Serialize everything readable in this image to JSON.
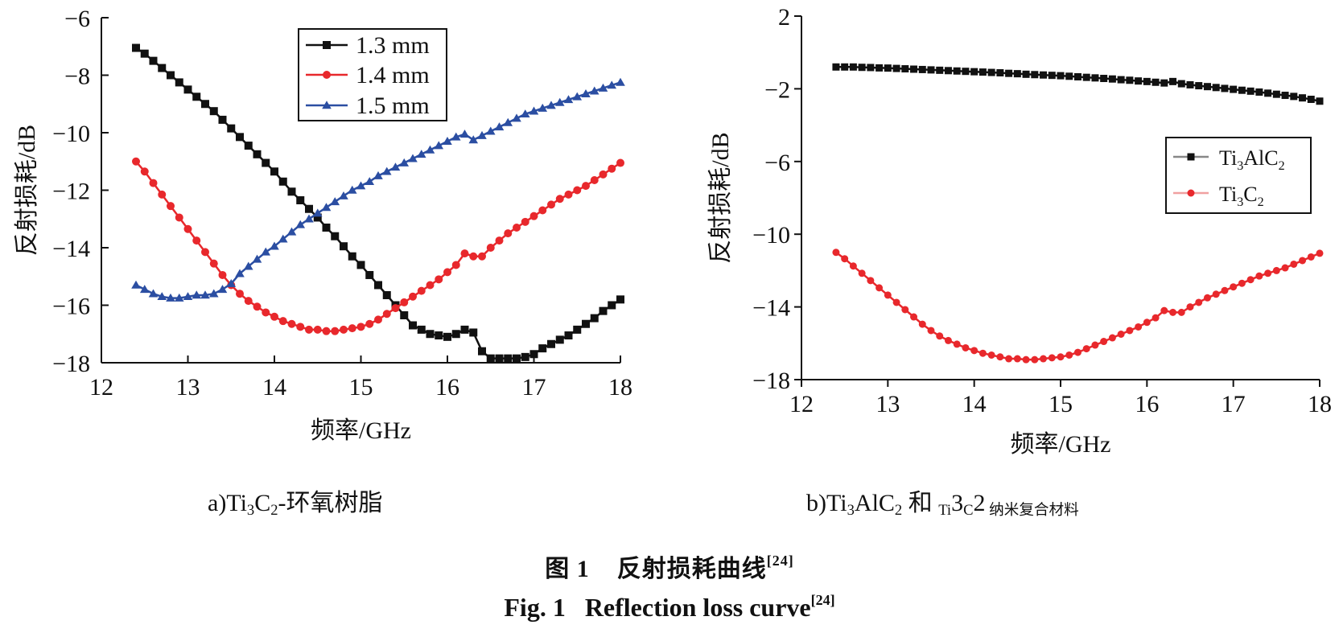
{
  "figure": {
    "caption_zh_prefix": "图 1",
    "caption_zh": "反射损耗曲线",
    "caption_ref": "[24]",
    "caption_en_prefix": "Fig. 1",
    "caption_en": "Reflection loss curve"
  },
  "chart_data": [
    {
      "type": "line",
      "panel_label": "a)",
      "caption_parts": [
        "Ti",
        "3",
        "C",
        "2",
        "-环氧树脂"
      ],
      "xlabel": "频率/GHz",
      "ylabel": "反射损耗/dB",
      "xlim": [
        12,
        18
      ],
      "ylim": [
        -18,
        -6
      ],
      "xticks": [
        12,
        13,
        14,
        15,
        16,
        17,
        18
      ],
      "yticks": [
        -6,
        -8,
        -10,
        -12,
        -14,
        -16,
        -18
      ],
      "grid": false,
      "legend_position": "top-center",
      "series": [
        {
          "name": "1.3 mm",
          "color": "#111111",
          "marker": "square",
          "x": [
            12.4,
            12.5,
            12.6,
            12.7,
            12.8,
            12.9,
            13.0,
            13.1,
            13.2,
            13.3,
            13.4,
            13.5,
            13.6,
            13.7,
            13.8,
            13.9,
            14.0,
            14.1,
            14.2,
            14.3,
            14.4,
            14.5,
            14.6,
            14.7,
            14.8,
            14.9,
            15.0,
            15.1,
            15.2,
            15.3,
            15.4,
            15.5,
            15.6,
            15.7,
            15.8,
            15.9,
            16.0,
            16.1,
            16.2,
            16.3,
            16.4,
            16.5,
            16.6,
            16.7,
            16.8,
            16.9,
            17.0,
            17.1,
            17.2,
            17.3,
            17.4,
            17.5,
            17.6,
            17.7,
            17.8,
            17.9,
            18.0
          ],
          "y": [
            -7.05,
            -7.25,
            -7.5,
            -7.75,
            -8.0,
            -8.25,
            -8.5,
            -8.75,
            -9.0,
            -9.25,
            -9.55,
            -9.85,
            -10.15,
            -10.45,
            -10.75,
            -11.05,
            -11.35,
            -11.7,
            -12.05,
            -12.35,
            -12.65,
            -12.95,
            -13.3,
            -13.6,
            -13.95,
            -14.3,
            -14.6,
            -14.95,
            -15.3,
            -15.65,
            -16.0,
            -16.35,
            -16.7,
            -16.85,
            -17.0,
            -17.05,
            -17.1,
            -17.0,
            -16.85,
            -16.95,
            -17.6,
            -17.85,
            -17.85,
            -17.85,
            -17.85,
            -17.8,
            -17.7,
            -17.5,
            -17.35,
            -17.2,
            -17.05,
            -16.85,
            -16.65,
            -16.45,
            -16.2,
            -16.0,
            -15.8
          ]
        },
        {
          "name": "1.4 mm",
          "color": "#e8282c",
          "marker": "circle",
          "x": [
            12.4,
            12.5,
            12.6,
            12.7,
            12.8,
            12.9,
            13.0,
            13.1,
            13.2,
            13.3,
            13.4,
            13.5,
            13.6,
            13.7,
            13.8,
            13.9,
            14.0,
            14.1,
            14.2,
            14.3,
            14.4,
            14.5,
            14.6,
            14.7,
            14.8,
            14.9,
            15.0,
            15.1,
            15.2,
            15.3,
            15.4,
            15.5,
            15.6,
            15.7,
            15.8,
            15.9,
            16.0,
            16.1,
            16.2,
            16.3,
            16.4,
            16.5,
            16.6,
            16.7,
            16.8,
            16.9,
            17.0,
            17.1,
            17.2,
            17.3,
            17.4,
            17.5,
            17.6,
            17.7,
            17.8,
            17.9,
            18.0
          ],
          "y": [
            -11.0,
            -11.35,
            -11.75,
            -12.15,
            -12.55,
            -12.95,
            -13.35,
            -13.75,
            -14.15,
            -14.55,
            -14.95,
            -15.3,
            -15.6,
            -15.85,
            -16.05,
            -16.25,
            -16.4,
            -16.55,
            -16.65,
            -16.75,
            -16.85,
            -16.85,
            -16.9,
            -16.9,
            -16.85,
            -16.8,
            -16.75,
            -16.65,
            -16.5,
            -16.3,
            -16.1,
            -15.9,
            -15.7,
            -15.5,
            -15.3,
            -15.1,
            -14.85,
            -14.6,
            -14.2,
            -14.3,
            -14.3,
            -14.0,
            -13.75,
            -13.5,
            -13.3,
            -13.1,
            -12.9,
            -12.7,
            -12.5,
            -12.3,
            -12.15,
            -12.0,
            -11.85,
            -11.65,
            -11.45,
            -11.25,
            -11.05
          ]
        },
        {
          "name": "1.5 mm",
          "color": "#2b4ea2",
          "marker": "triangle",
          "x": [
            12.4,
            12.5,
            12.6,
            12.7,
            12.8,
            12.9,
            13.0,
            13.1,
            13.2,
            13.3,
            13.4,
            13.5,
            13.6,
            13.7,
            13.8,
            13.9,
            14.0,
            14.1,
            14.2,
            14.3,
            14.4,
            14.5,
            14.6,
            14.7,
            14.8,
            14.9,
            15.0,
            15.1,
            15.2,
            15.3,
            15.4,
            15.5,
            15.6,
            15.7,
            15.8,
            15.9,
            16.0,
            16.1,
            16.2,
            16.3,
            16.4,
            16.5,
            16.6,
            16.7,
            16.8,
            16.9,
            17.0,
            17.1,
            17.2,
            17.3,
            17.4,
            17.5,
            17.6,
            17.7,
            17.8,
            17.9,
            18.0
          ],
          "y": [
            -15.3,
            -15.45,
            -15.6,
            -15.7,
            -15.75,
            -15.75,
            -15.7,
            -15.65,
            -15.65,
            -15.6,
            -15.45,
            -15.25,
            -14.9,
            -14.65,
            -14.4,
            -14.15,
            -13.95,
            -13.7,
            -13.45,
            -13.2,
            -13.0,
            -12.8,
            -12.6,
            -12.4,
            -12.2,
            -12.0,
            -11.85,
            -11.7,
            -11.5,
            -11.35,
            -11.2,
            -11.05,
            -10.9,
            -10.75,
            -10.6,
            -10.45,
            -10.3,
            -10.15,
            -10.05,
            -10.25,
            -10.1,
            -9.95,
            -9.8,
            -9.65,
            -9.5,
            -9.35,
            -9.25,
            -9.15,
            -9.05,
            -8.95,
            -8.85,
            -8.75,
            -8.65,
            -8.55,
            -8.45,
            -8.35,
            -8.25
          ]
        }
      ]
    },
    {
      "type": "line",
      "panel_label": "b)",
      "caption_parts": [
        "Ti",
        "3",
        "AlC",
        "2",
        " 和 ",
        "Ti",
        "3",
        "C",
        "2",
        " 纳米复合材料"
      ],
      "xlabel": "频率/GHz",
      "ylabel": "反射损耗/dB",
      "xlim": [
        12,
        18
      ],
      "ylim": [
        -18,
        2
      ],
      "xticks": [
        12,
        13,
        14,
        15,
        16,
        17,
        18
      ],
      "yticks": [
        2,
        -2,
        -6,
        -10,
        -14,
        -18
      ],
      "grid": false,
      "legend_position": "right",
      "series": [
        {
          "name": "Ti3AlC2",
          "name_parts": [
            "Ti",
            "3",
            "AlC",
            "2"
          ],
          "color": "#111111",
          "marker": "square",
          "x": [
            12.4,
            12.5,
            12.6,
            12.7,
            12.8,
            12.9,
            13.0,
            13.1,
            13.2,
            13.3,
            13.4,
            13.5,
            13.6,
            13.7,
            13.8,
            13.9,
            14.0,
            14.1,
            14.2,
            14.3,
            14.4,
            14.5,
            14.6,
            14.7,
            14.8,
            14.9,
            15.0,
            15.1,
            15.2,
            15.3,
            15.4,
            15.5,
            15.6,
            15.7,
            15.8,
            15.9,
            16.0,
            16.1,
            16.2,
            16.3,
            16.4,
            16.5,
            16.6,
            16.7,
            16.8,
            16.9,
            17.0,
            17.1,
            17.2,
            17.3,
            17.4,
            17.5,
            17.6,
            17.7,
            17.8,
            17.9,
            18.0
          ],
          "y": [
            -0.8,
            -0.8,
            -0.8,
            -0.82,
            -0.83,
            -0.85,
            -0.86,
            -0.88,
            -0.9,
            -0.92,
            -0.94,
            -0.96,
            -0.98,
            -1.0,
            -1.02,
            -1.04,
            -1.06,
            -1.08,
            -1.1,
            -1.12,
            -1.15,
            -1.17,
            -1.2,
            -1.22,
            -1.24,
            -1.26,
            -1.28,
            -1.31,
            -1.34,
            -1.37,
            -1.4,
            -1.43,
            -1.46,
            -1.5,
            -1.53,
            -1.57,
            -1.6,
            -1.64,
            -1.68,
            -1.6,
            -1.72,
            -1.78,
            -1.83,
            -1.88,
            -1.93,
            -1.98,
            -2.03,
            -2.08,
            -2.13,
            -2.18,
            -2.24,
            -2.3,
            -2.36,
            -2.42,
            -2.5,
            -2.58,
            -2.68
          ]
        },
        {
          "name": "Ti3C2",
          "name_parts": [
            "Ti",
            "3",
            "C",
            "2"
          ],
          "color": "#e8282c",
          "marker": "circle",
          "x": [
            12.4,
            12.5,
            12.6,
            12.7,
            12.8,
            12.9,
            13.0,
            13.1,
            13.2,
            13.3,
            13.4,
            13.5,
            13.6,
            13.7,
            13.8,
            13.9,
            14.0,
            14.1,
            14.2,
            14.3,
            14.4,
            14.5,
            14.6,
            14.7,
            14.8,
            14.9,
            15.0,
            15.1,
            15.2,
            15.3,
            15.4,
            15.5,
            15.6,
            15.7,
            15.8,
            15.9,
            16.0,
            16.1,
            16.2,
            16.3,
            16.4,
            16.5,
            16.6,
            16.7,
            16.8,
            16.9,
            17.0,
            17.1,
            17.2,
            17.3,
            17.4,
            17.5,
            17.6,
            17.7,
            17.8,
            17.9,
            18.0
          ],
          "y": [
            -11.0,
            -11.35,
            -11.75,
            -12.15,
            -12.55,
            -12.95,
            -13.35,
            -13.75,
            -14.15,
            -14.55,
            -14.95,
            -15.3,
            -15.6,
            -15.85,
            -16.05,
            -16.25,
            -16.4,
            -16.55,
            -16.65,
            -16.75,
            -16.85,
            -16.85,
            -16.9,
            -16.9,
            -16.85,
            -16.8,
            -16.75,
            -16.65,
            -16.5,
            -16.3,
            -16.1,
            -15.9,
            -15.7,
            -15.5,
            -15.3,
            -15.1,
            -14.85,
            -14.6,
            -14.2,
            -14.3,
            -14.3,
            -14.0,
            -13.75,
            -13.5,
            -13.3,
            -13.1,
            -12.9,
            -12.7,
            -12.5,
            -12.3,
            -12.15,
            -12.0,
            -11.85,
            -11.65,
            -11.45,
            -11.25,
            -11.05
          ]
        }
      ]
    }
  ]
}
